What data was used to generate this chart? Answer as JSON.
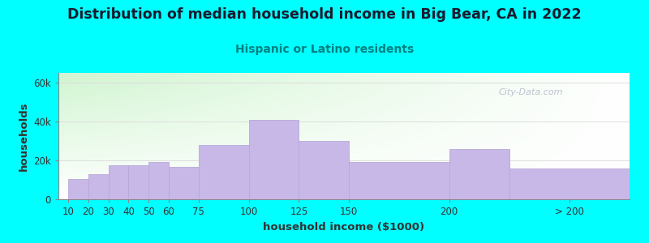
{
  "title": "Distribution of median household income in Big Bear, CA in 2022",
  "subtitle": "Hispanic or Latino residents",
  "xlabel": "household income ($1000)",
  "ylabel": "households",
  "background_color": "#00ffff",
  "plot_bg_color_topleft": "#d8efd0",
  "plot_bg_color_right": "#f5fff5",
  "plot_bg_color_bottom": "#ffffff",
  "bar_color": "#c8b8e8",
  "bar_edge_color": "#b8a8d8",
  "x_positions": [
    10,
    20,
    30,
    40,
    50,
    60,
    75,
    100,
    125,
    150,
    200,
    230
  ],
  "widths": [
    10,
    10,
    10,
    10,
    10,
    15,
    25,
    25,
    25,
    50,
    30,
    60
  ],
  "values": [
    10500,
    13000,
    17500,
    17500,
    19000,
    16500,
    28000,
    41000,
    30000,
    19000,
    26000,
    16000
  ],
  "ylim": [
    0,
    65000
  ],
  "xlim_left": 5,
  "xlim_right": 290,
  "yticks": [
    0,
    20000,
    40000,
    60000
  ],
  "ytick_labels": [
    "0",
    "20k",
    "40k",
    "60k"
  ],
  "xtick_positions": [
    10,
    20,
    30,
    40,
    50,
    60,
    75,
    100,
    125,
    150,
    200,
    260
  ],
  "xtick_labels": [
    "10",
    "20",
    "30",
    "40",
    "50",
    "60",
    "75",
    "100",
    "125",
    "150",
    "200",
    "> 200"
  ],
  "title_fontsize": 12.5,
  "subtitle_fontsize": 10,
  "axis_label_fontsize": 9.5,
  "tick_fontsize": 8.5,
  "watermark_text": "City-Data.com",
  "title_color": "#1a1a2e",
  "subtitle_color": "#008080",
  "axis_label_color": "#333333",
  "tick_color": "#333333",
  "grid_color": "#dddddd",
  "spine_color": "#888888"
}
